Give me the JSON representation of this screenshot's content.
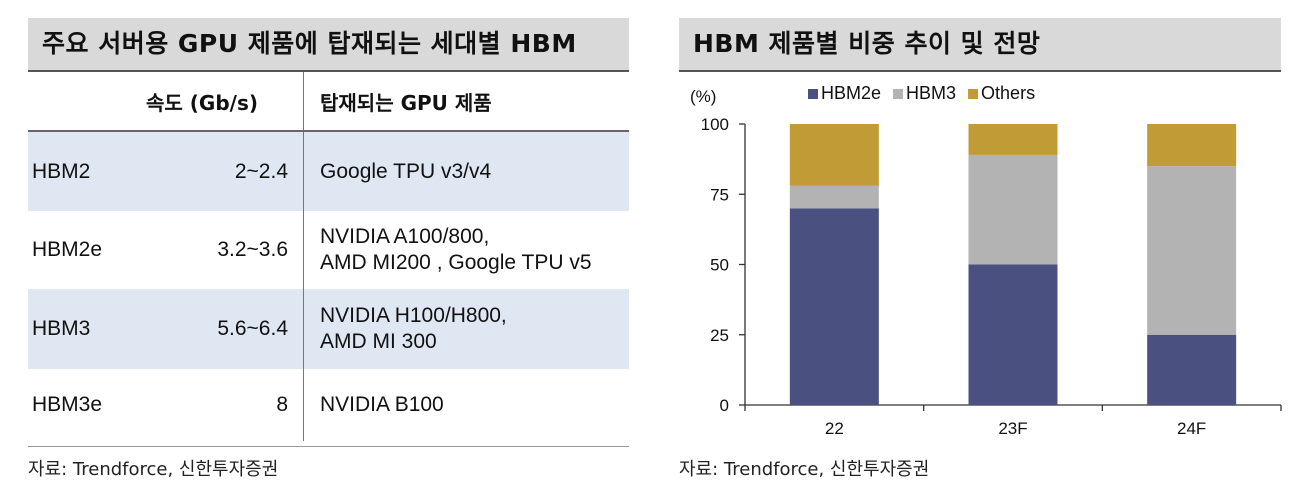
{
  "left_panel": {
    "title": "주요 서버용 GPU 제품에 탑재되는 세대별 HBM",
    "columns": [
      "",
      "속도 (Gb/s)",
      "탑재되는 GPU 제품"
    ],
    "rows": [
      {
        "name": "HBM2",
        "speed": "2~2.4",
        "gpu": [
          "Google TPU v3/v4"
        ]
      },
      {
        "name": "HBM2e",
        "speed": "3.2~3.6",
        "gpu": [
          "NVIDIA A100/800,",
          "AMD MI200 , Google TPU v5"
        ]
      },
      {
        "name": "HBM3",
        "speed": "5.6~6.4",
        "gpu": [
          "NVIDIA H100/H800,",
          "AMD MI 300"
        ]
      },
      {
        "name": "HBM3e",
        "speed": "8",
        "gpu": [
          "NVIDIA B100"
        ]
      }
    ],
    "source": "자료: Trendforce, 신한투자증권"
  },
  "right_panel": {
    "title": "HBM 제품별 비중 추이 및 전망",
    "source": "자료: Trendforce, 신한투자증권"
  },
  "chart_data": {
    "type": "bar",
    "stacked": true,
    "title": "HBM 제품별 비중 추이 및 전망",
    "ylabel": "(%)",
    "ylim": [
      0,
      100
    ],
    "yticks": [
      0,
      25,
      50,
      75,
      100
    ],
    "categories": [
      "22",
      "23F",
      "24F"
    ],
    "series": [
      {
        "name": "HBM2e",
        "values": [
          70,
          50,
          25
        ],
        "color": "#4a5180"
      },
      {
        "name": "HBM3",
        "values": [
          8,
          39,
          60
        ],
        "color": "#b3b3b3"
      },
      {
        "name": "Others",
        "values": [
          22,
          11,
          15
        ],
        "color": "#c19b35"
      }
    ],
    "legend": "top",
    "grid": false
  }
}
